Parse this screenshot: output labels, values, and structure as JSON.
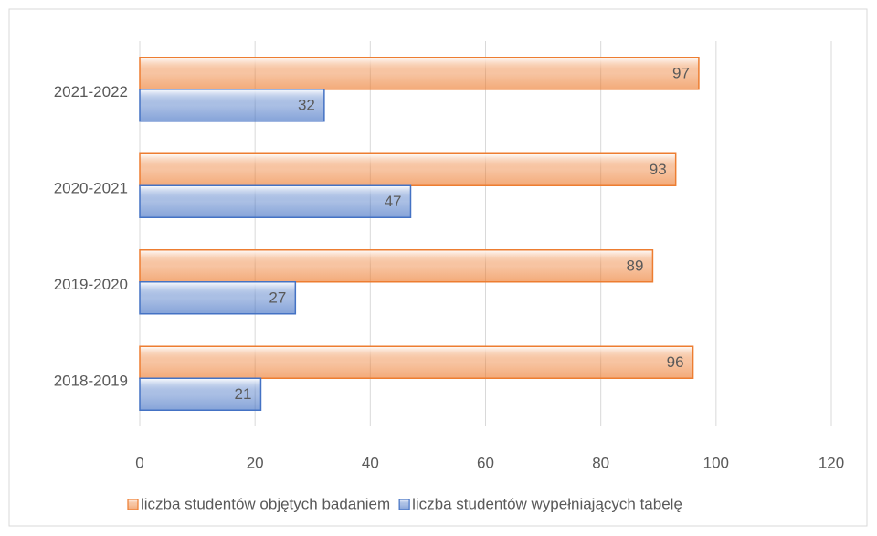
{
  "chart_data": {
    "type": "bar",
    "orientation": "horizontal",
    "categories": [
      "2018-2019",
      "2019-2020",
      "2020-2021",
      "2021-2022"
    ],
    "series": [
      {
        "name": "liczba studentów objętych badaniem",
        "color": "#ed7d31",
        "values": [
          96,
          89,
          93,
          97
        ]
      },
      {
        "name": "liczba studentów wypełniających tabelę",
        "color": "#4472c4",
        "values": [
          21,
          27,
          47,
          32
        ]
      }
    ],
    "xlim": [
      0,
      120
    ],
    "xticks": [
      0,
      20,
      40,
      60,
      80,
      100,
      120
    ],
    "grid": true,
    "legend": "bottom"
  }
}
